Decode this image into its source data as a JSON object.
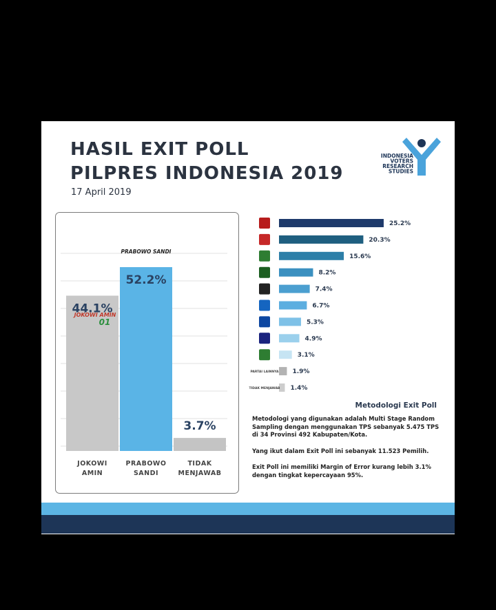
{
  "header": {
    "title_line1": "HASIL EXIT POLL",
    "title_line2": "PILPRES INDONESIA 2019",
    "date": "17 April 2019"
  },
  "logo": {
    "lines": [
      "INDONESIA",
      "VOTERS",
      "RESEARCH",
      "STUDIES"
    ]
  },
  "chart_data": [
    {
      "type": "bar",
      "categories": [
        "JOKOWI AMIN",
        "PRABOWO SANDI",
        "TIDAK MENJAWAB"
      ],
      "values": [
        44.1,
        52.2,
        3.7
      ],
      "value_labels": [
        "44.1%",
        "52.2%",
        "3.7%"
      ],
      "colors": [
        "#c8c8c8",
        "#5ab4e6",
        "#c4c4c4"
      ],
      "grid": true,
      "annotations": [
        "JOKOWI AMIN",
        "01",
        "PRABOWO SANDI"
      ]
    },
    {
      "type": "hbar",
      "categories": [
        null,
        null,
        null,
        null,
        null,
        null,
        null,
        null,
        null,
        "PARTAI LAINNYA",
        "TIDAK MENJAWAB"
      ],
      "values": [
        25.2,
        20.3,
        15.6,
        8.2,
        7.4,
        6.7,
        5.3,
        4.9,
        3.1,
        1.9,
        1.4
      ],
      "value_labels": [
        "25.2%",
        "20.3%",
        "15.6%",
        "8.2%",
        "7.4%",
        "6.7%",
        "5.3%",
        "4.9%",
        "3.1%",
        "1.9%",
        "1.4%"
      ],
      "colors": [
        "#1e3a6b",
        "#1f5f80",
        "#2d7fa8",
        "#3b90c0",
        "#4b9fd0",
        "#5caee0",
        "#7ec1e7",
        "#9bd0ec",
        "#c6e4f3",
        "#b3b3b3",
        "#cdcdcd"
      ]
    }
  ],
  "methodology": {
    "title": "Metodologi Exit Poll",
    "paragraphs": [
      "Metodologi yang digunakan adalah Multi Stage Random Sampling dengan menggunakan TPS sebanyak 5.475 TPS di 34 Provinsi 492 Kabupaten/Kota.",
      "Yang ikut dalam Exit Poll ini sebanyak 11.523 Pemilih.",
      "Exit Poll ini memiliki Margin of Error kurang lebih 3.1% dengan tingkat kepercayaan 95%."
    ]
  }
}
